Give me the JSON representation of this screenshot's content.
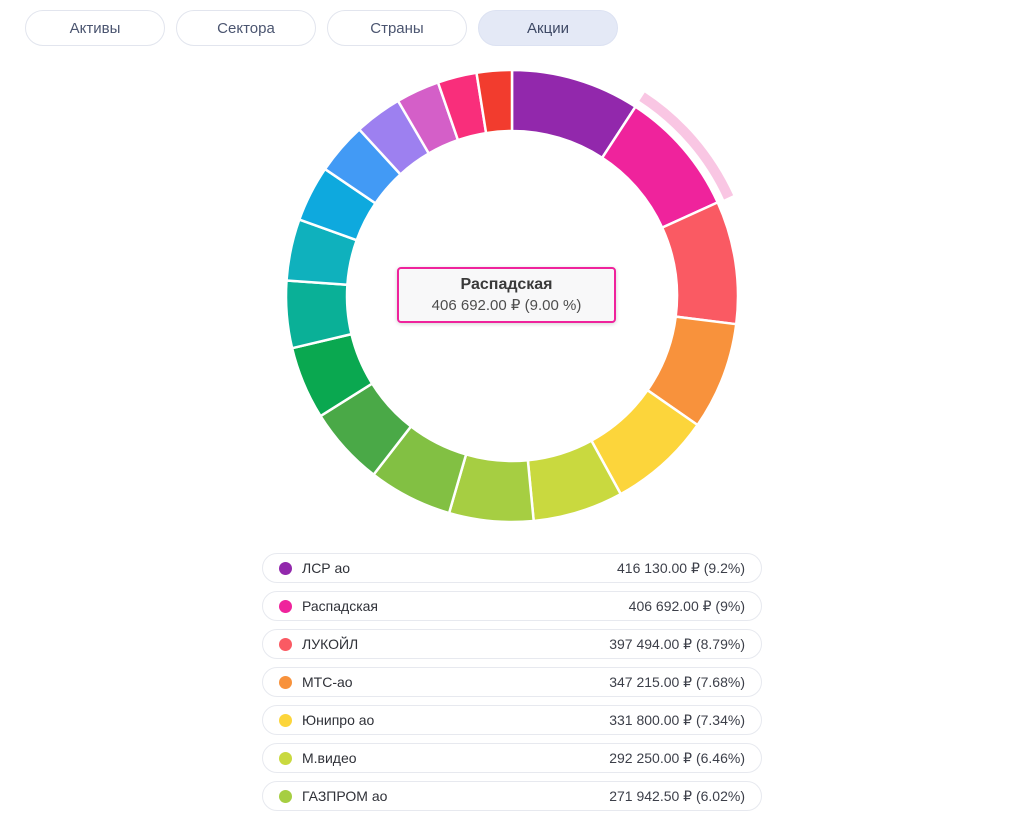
{
  "tabs": [
    {
      "label": "Активы",
      "selected": false
    },
    {
      "label": "Сектора",
      "selected": false
    },
    {
      "label": "Страны",
      "selected": false
    },
    {
      "label": "Акции",
      "selected": true
    }
  ],
  "tooltip": {
    "title": "Распадская",
    "value": "406 692.00 ₽ (9.00 %)"
  },
  "colors": {
    "highlight_band": "#f9c6e3",
    "tooltip_border": "#ef239c",
    "selected_tab_bg": "#e4e9f6",
    "segment_gap_stroke": "#ffffff"
  },
  "chart_data": {
    "type": "donut",
    "title": "",
    "unit": "₽",
    "legend_position": "bottom",
    "start_angle_deg": 0,
    "direction": "clockwise",
    "grid": false,
    "segments": [
      {
        "label": "ЛСР ао",
        "amount": "416 130.00",
        "percent": 9.2,
        "display": "416 130.00 ₽ (9.2%)",
        "color": "#9228ac",
        "highlighted": false
      },
      {
        "label": "Распадская",
        "amount": "406 692.00",
        "percent": 9.0,
        "display": "406 692.00 ₽ (9%)",
        "color": "#ef239c",
        "highlighted": true
      },
      {
        "label": "ЛУКОЙЛ",
        "amount": "397 494.00",
        "percent": 8.79,
        "display": "397 494.00 ₽ (8.79%)",
        "color": "#fa5a63",
        "highlighted": false
      },
      {
        "label": "МТС-ао",
        "amount": "347 215.00",
        "percent": 7.68,
        "display": "347 215.00 ₽ (7.68%)",
        "color": "#f8923c",
        "highlighted": false
      },
      {
        "label": "Юнипро ао",
        "amount": "331 800.00",
        "percent": 7.34,
        "display": "331 800.00 ₽ (7.34%)",
        "color": "#fcd53b",
        "highlighted": false
      },
      {
        "label": "М.видео",
        "amount": "292 250.00",
        "percent": 6.46,
        "display": "292 250.00 ₽ (6.46%)",
        "color": "#c9d93f",
        "highlighted": false
      },
      {
        "label": "ГАЗПРОМ ао",
        "amount": "271 942.50",
        "percent": 6.02,
        "display": "271 942.50 ₽ (6.02%)",
        "color": "#a6ce42",
        "highlighted": false
      },
      {
        "label": null,
        "percent": 6.0,
        "color": "#82c043",
        "highlighted": false
      },
      {
        "label": null,
        "percent": 5.6,
        "color": "#4aa947",
        "highlighted": false
      },
      {
        "label": null,
        "percent": 5.2,
        "color": "#0aa850",
        "highlighted": false
      },
      {
        "label": null,
        "percent": 4.8,
        "color": "#0ab097",
        "highlighted": false
      },
      {
        "label": null,
        "percent": 4.4,
        "color": "#0fb1bd",
        "highlighted": false
      },
      {
        "label": null,
        "percent": 4.0,
        "color": "#0ea9de",
        "highlighted": false
      },
      {
        "label": null,
        "percent": 3.7,
        "color": "#429af5",
        "highlighted": false
      },
      {
        "label": null,
        "percent": 3.4,
        "color": "#9d80f0",
        "highlighted": false
      },
      {
        "label": null,
        "percent": 3.1,
        "color": "#d45fc8",
        "highlighted": false
      },
      {
        "label": null,
        "percent": 2.8,
        "color": "#f92e7b",
        "highlighted": false
      },
      {
        "label": null,
        "percent": 2.51,
        "color": "#f23c2e",
        "highlighted": false
      }
    ],
    "geometry": {
      "outer_radius": 226,
      "inner_radius": 165,
      "highlight_band_inner": 233,
      "highlight_band_outer": 243
    }
  }
}
